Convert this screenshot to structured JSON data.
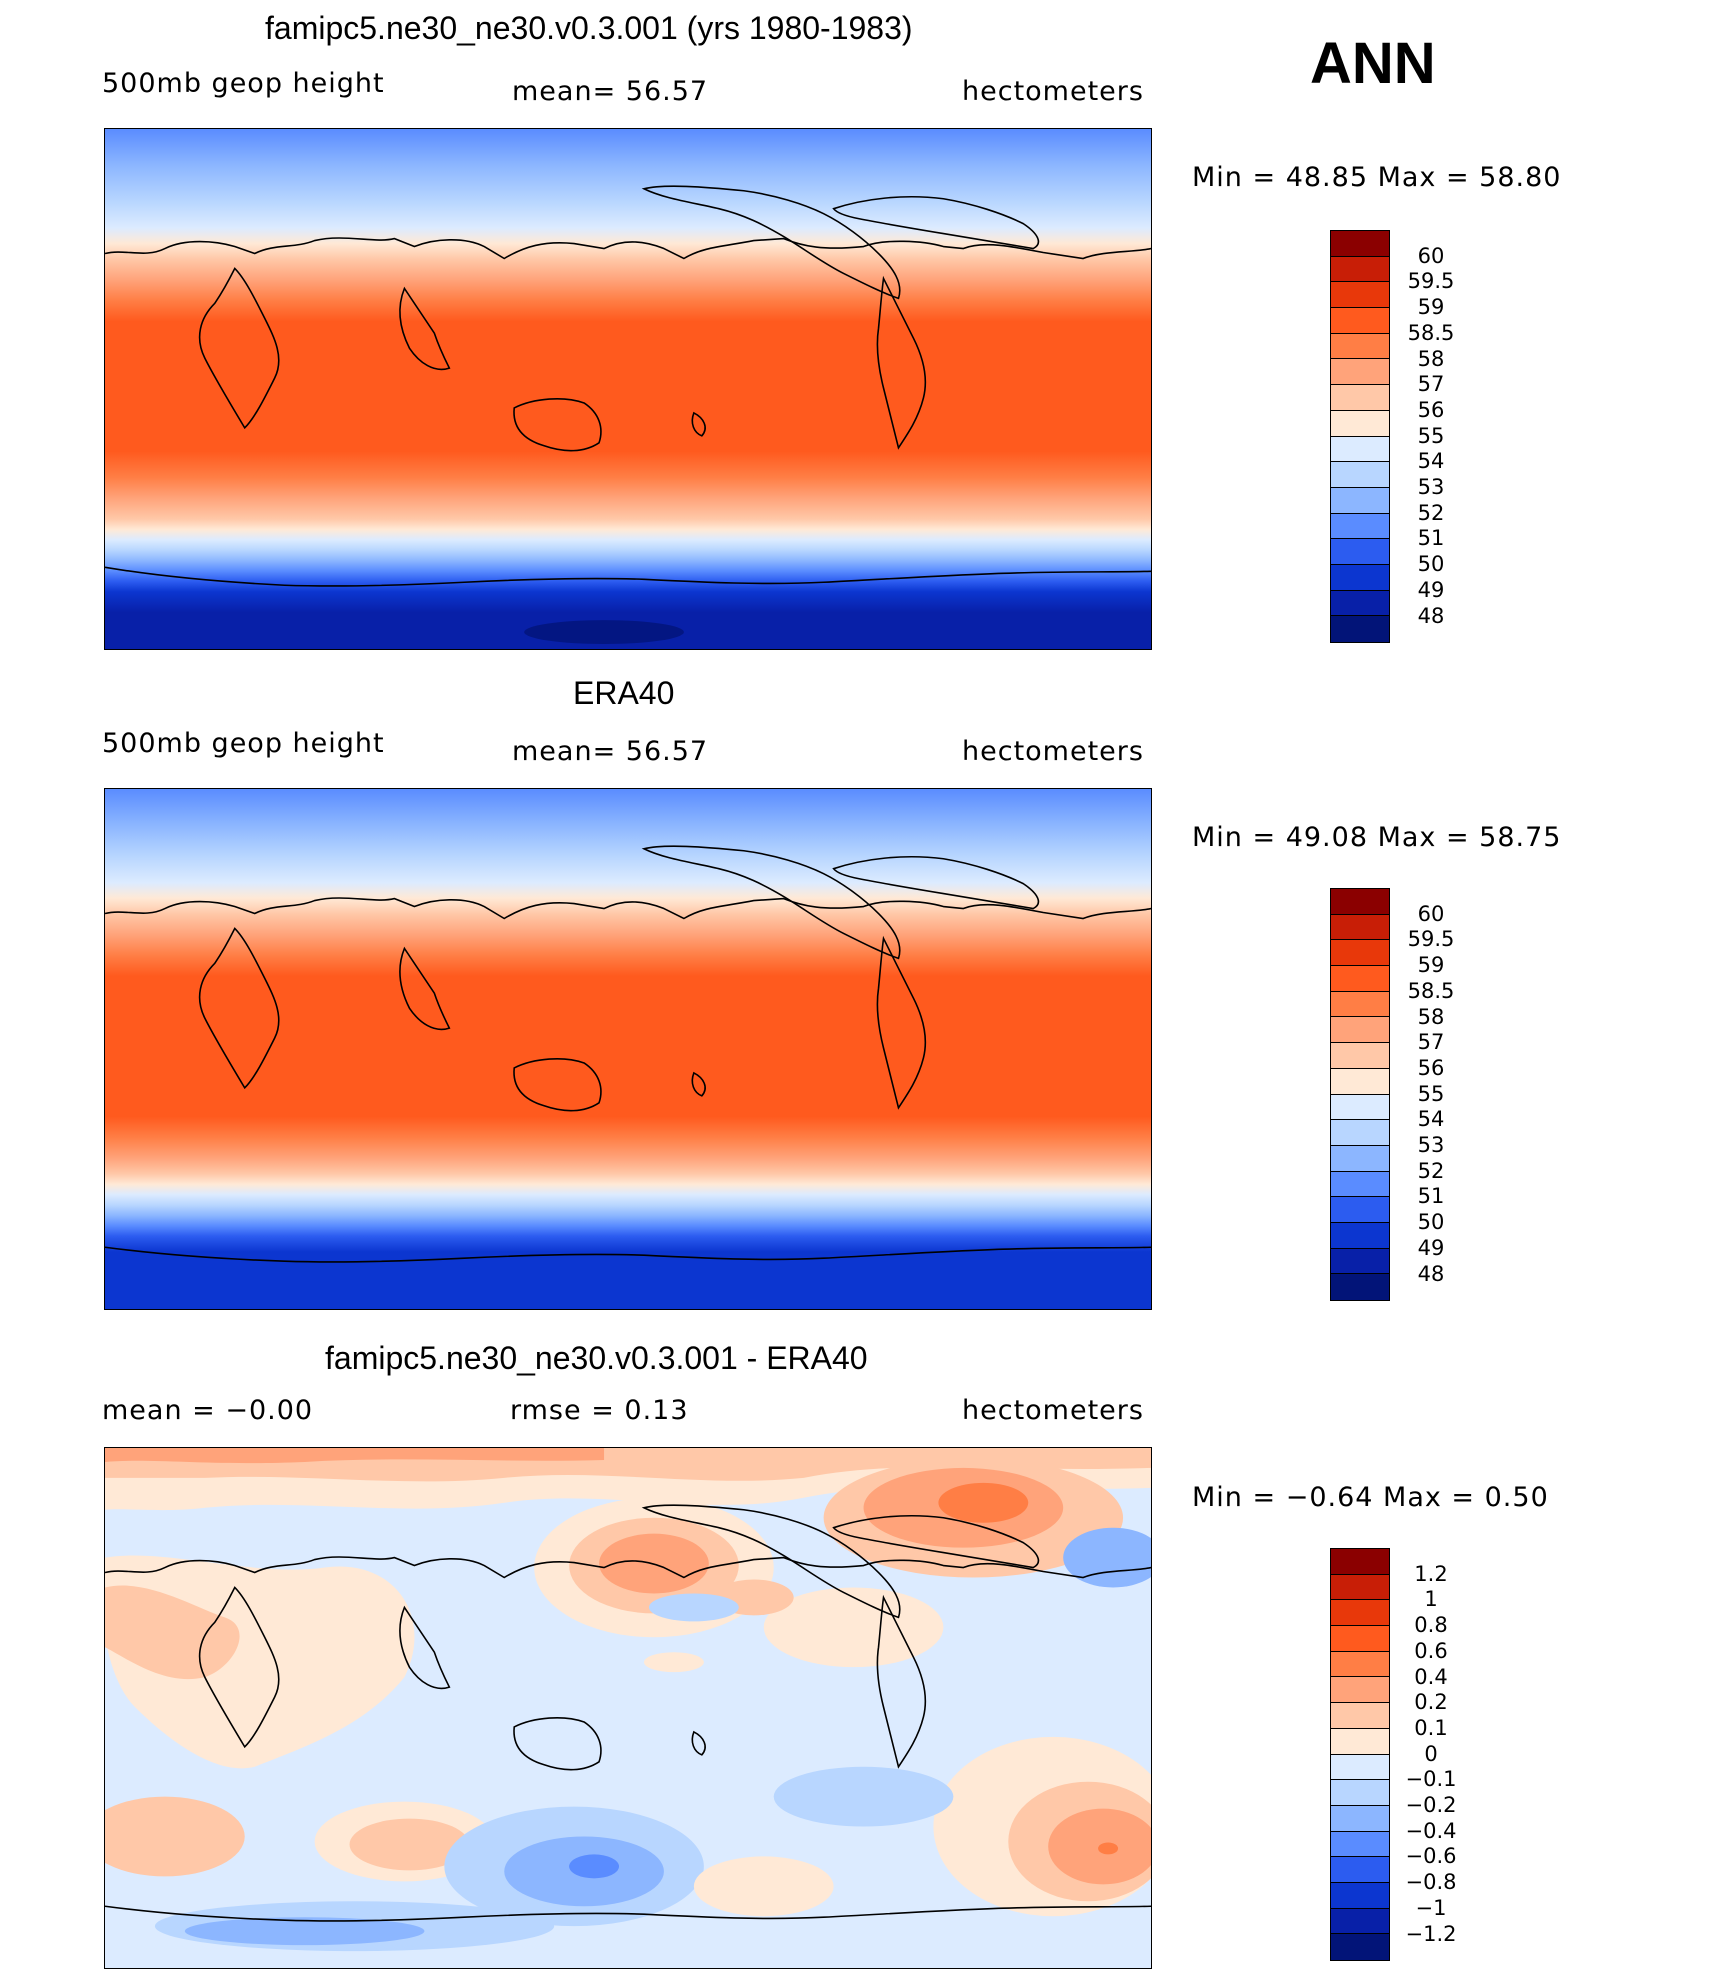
{
  "season": "ANN",
  "panels": [
    {
      "title": "famipc5.ne30_ne30.v0.3.001 (yrs 1980-1983)",
      "left_text": "500mb  geop  height",
      "center_text": "mean=   56.57",
      "right_text": "hectometers",
      "minmax": "Min  =    48.85  Max  =    58.80",
      "stats": {
        "min": 48.85,
        "max": 58.8,
        "mean": 56.57
      },
      "colorbar": {
        "labels": [
          "60",
          "59.5",
          "59",
          "58.5",
          "58",
          "57",
          "56",
          "55",
          "54",
          "53",
          "52",
          "51",
          "50",
          "49",
          "48"
        ],
        "colors": [
          "#8b0000",
          "#c81e06",
          "#e8380a",
          "#ff5a1e",
          "#ff7e45",
          "#ffa37a",
          "#ffc8a8",
          "#ffe9d6",
          "#dcebff",
          "#b8d6ff",
          "#8cb6ff",
          "#5a8cff",
          "#2c5cf0",
          "#0c36d0",
          "#0820a8",
          "#021478"
        ]
      }
    },
    {
      "title": "ERA40",
      "left_text": "500mb  geop  height",
      "center_text": "mean=   56.57",
      "right_text": "hectometers",
      "minmax": "Min  =    49.08  Max  =    58.75",
      "stats": {
        "min": 49.08,
        "max": 58.75,
        "mean": 56.57
      },
      "colorbar": {
        "labels": [
          "60",
          "59.5",
          "59",
          "58.5",
          "58",
          "57",
          "56",
          "55",
          "54",
          "53",
          "52",
          "51",
          "50",
          "49",
          "48"
        ],
        "colors": [
          "#8b0000",
          "#c81e06",
          "#e8380a",
          "#ff5a1e",
          "#ff7e45",
          "#ffa37a",
          "#ffc8a8",
          "#ffe9d6",
          "#dcebff",
          "#b8d6ff",
          "#8cb6ff",
          "#5a8cff",
          "#2c5cf0",
          "#0c36d0",
          "#0820a8",
          "#021478"
        ]
      }
    },
    {
      "title": "famipc5.ne30_ne30.v0.3.001 - ERA40",
      "left_text": "mean  =    −0.00",
      "center_text": "rmse  =     0.13",
      "right_text": "hectometers",
      "minmax": "Min  =    −0.64  Max  =      0.50",
      "stats": {
        "min": -0.64,
        "max": 0.5,
        "mean": -0.0,
        "rmse": 0.13
      },
      "colorbar": {
        "labels": [
          "1.2",
          "1",
          "0.8",
          "0.6",
          "0.4",
          "0.2",
          "0.1",
          "0",
          "−0.1",
          "−0.2",
          "−0.4",
          "−0.6",
          "−0.8",
          "−1",
          "−1.2"
        ],
        "colors": [
          "#8b0000",
          "#c81e06",
          "#e8380a",
          "#ff5a1e",
          "#ff7e45",
          "#ffa37a",
          "#ffc8a8",
          "#ffe9d6",
          "#dcebff",
          "#b8d6ff",
          "#8cb6ff",
          "#5a8cff",
          "#2c5cf0",
          "#0c36d0",
          "#0820a8",
          "#021478"
        ]
      }
    }
  ]
}
